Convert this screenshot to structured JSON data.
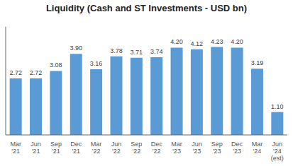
{
  "chart_data": {
    "type": "bar",
    "title": "Liquidity (Cash and ST Investments - USD bn)",
    "categories": [
      "Mar\n'21",
      "Jun\n'21",
      "Sep\n'21",
      "Dec\n'21",
      "Mar\n'22",
      "Jun\n'22",
      "Sep\n'22",
      "Dec\n'22",
      "Mar\n'23",
      "Jun\n'23",
      "Sep\n'23",
      "Dec\n'23",
      "Mar\n'24",
      "Jun\n'24\n(est)"
    ],
    "values": [
      2.72,
      2.72,
      3.08,
      3.9,
      3.16,
      3.78,
      3.71,
      3.74,
      4.2,
      4.12,
      4.23,
      4.2,
      3.19,
      1.1
    ],
    "value_labels": [
      "2.72",
      "2.72",
      "3.08",
      "3.90",
      "3.16",
      "3.78",
      "3.71",
      "3.74",
      "4.20",
      "4.12",
      "4.23",
      "4.20",
      "3.19",
      "1.10"
    ],
    "color": "#5B9BD5",
    "ylim": [
      0,
      5.2
    ],
    "data_labels": true,
    "tick_labels": "x",
    "grid": false
  }
}
